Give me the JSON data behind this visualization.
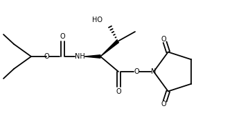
{
  "background": "#ffffff",
  "lw": 1.3,
  "fs": 7.0,
  "figsize": [
    3.48,
    1.64
  ],
  "dpi": 100,
  "xlim": [
    0,
    348
  ],
  "ylim": [
    0,
    164
  ]
}
